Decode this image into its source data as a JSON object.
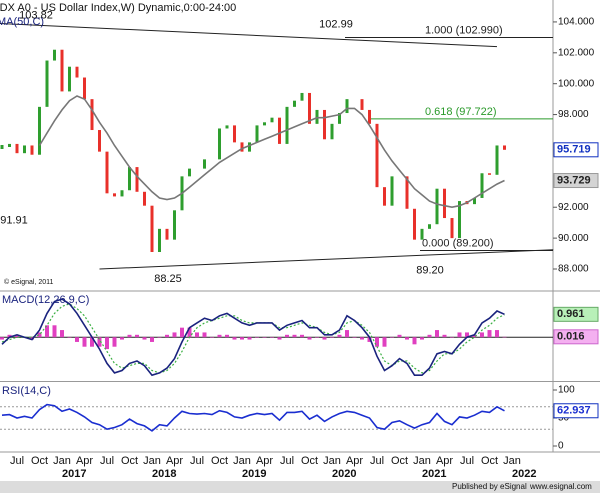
{
  "header": {
    "title": "(DX A0 - US Dollar Index,W) Dynamic,0:00-24:00",
    "watermark": "© eSignal, 2011"
  },
  "footer": {
    "left": "Published by eSignal",
    "right": "www.esignal.com"
  },
  "chart_data": [
    {
      "type": "price",
      "title": "MA(50,C)",
      "categories": [
        null,
        null,
        "Jul",
        null,
        null,
        "Oct",
        null,
        null,
        "Jan",
        null,
        null,
        "Apr",
        null,
        null,
        "Jul",
        null,
        null,
        "Oct",
        null,
        null,
        "Jan",
        null,
        null,
        "Apr",
        null,
        null,
        "Jul",
        null,
        null,
        "Oct",
        null,
        null,
        "Jan",
        null,
        null,
        "Apr",
        null,
        null,
        "Jul",
        null,
        null,
        "Oct",
        null,
        null,
        "Jan",
        null,
        null,
        "Apr",
        null,
        null,
        "Jul",
        null,
        null,
        "Oct",
        null,
        null,
        "Jan",
        null,
        null,
        "Apr",
        null,
        null,
        "Jul",
        null,
        null,
        "Oct",
        null,
        null,
        "Jan"
      ],
      "category_years": [
        null,
        null,
        null,
        null,
        null,
        null,
        null,
        null,
        "2017",
        null,
        null,
        null,
        null,
        null,
        null,
        null,
        null,
        null,
        null,
        null,
        "2018",
        null,
        null,
        null,
        null,
        null,
        null,
        null,
        null,
        null,
        null,
        null,
        "2019",
        null,
        null,
        null,
        null,
        null,
        null,
        null,
        null,
        null,
        null,
        null,
        "2020",
        null,
        null,
        null,
        null,
        null,
        null,
        null,
        null,
        null,
        null,
        null,
        "2021",
        null,
        null,
        null,
        null,
        null,
        null,
        null,
        null,
        null,
        null,
        null,
        "2022"
      ],
      "ylim": [
        86.64,
        105.42
      ],
      "yticks": [
        {
          "value": 104,
          "label": "104.000"
        },
        {
          "value": 102,
          "label": "102.000"
        },
        {
          "value": 100,
          "label": "100.000"
        },
        {
          "value": 98,
          "label": "98.000"
        },
        {
          "value": 92,
          "label": "92.000"
        },
        {
          "value": 90,
          "label": "90.000"
        },
        {
          "value": 88,
          "label": "88.000"
        }
      ],
      "up_color": "#2e9e2e",
      "down_color": "#e8302a",
      "series": [
        {
          "color": "#1030c0",
          "values": [
            95.9,
            96.1,
            95.5,
            96.0,
            95.4,
            98.5,
            101.5,
            102.2,
            99.5,
            101.1,
            100.4,
            99.0,
            97.0,
            95.6,
            92.9,
            92.7,
            93.1,
            94.6,
            93.0,
            92.1,
            89.1,
            90.6,
            89.9,
            91.8,
            94.0,
            94.5,
            94.5,
            95.1,
            95.1,
            97.1,
            97.3,
            96.2,
            95.6,
            96.2,
            97.3,
            97.5,
            97.8,
            96.1,
            98.5,
            98.9,
            99.4,
            97.4,
            98.3,
            96.4,
            97.4,
            98.1,
            99.0,
            99.0,
            98.3,
            97.4,
            93.3,
            92.1,
            94.0,
            94.0,
            91.9,
            89.9,
            90.6,
            90.9,
            93.2,
            91.3,
            90.0,
            92.4,
            92.2,
            92.6,
            94.2,
            94.1,
            96.0,
            95.719,
            null
          ]
        },
        {
          "color": "#777777",
          "values": [
            null,
            null,
            null,
            null,
            null,
            96.0,
            96.8,
            97.6,
            98.3,
            98.9,
            99.2,
            99.0,
            98.3,
            97.5,
            96.8,
            96.0,
            95.3,
            94.6,
            94.0,
            93.5,
            93.0,
            92.6,
            92.5,
            92.6,
            92.9,
            93.3,
            93.7,
            94.1,
            94.5,
            94.9,
            95.2,
            95.5,
            95.8,
            96.0,
            96.2,
            96.4,
            96.6,
            96.8,
            97.0,
            97.2,
            97.4,
            97.6,
            97.8,
            97.8,
            97.9,
            98.0,
            98.4,
            98.4,
            98.0,
            97.3,
            96.5,
            95.7,
            95.0,
            94.4,
            93.8,
            93.2,
            92.8,
            92.4,
            92.2,
            92.1,
            92.0,
            92.1,
            92.3,
            92.6,
            92.9,
            93.2,
            93.5,
            93.729,
            null
          ]
        }
      ],
      "fib_levels": [
        {
          "value": 102.99,
          "label": "1.000 (102.990)",
          "color": "#222222"
        },
        {
          "value": 97.722,
          "label": "0.618 (97.722)",
          "color": "#2a9a2a"
        },
        {
          "value": 89.2,
          "label": "0.000 (89.200)",
          "color": "#222222"
        }
      ],
      "trendlines": [
        {
          "x": [
            -0.3,
            66
          ],
          "y": [
            103.9,
            102.4
          ]
        },
        {
          "x": [
            13,
            73.5
          ],
          "y": [
            88.0,
            89.25
          ]
        }
      ],
      "annotations": [
        103.82,
        102.99,
        88.25,
        {
          "value": 89.2,
          "label": "89.20"
        },
        91.91
      ]
    },
    {
      "type": "macd",
      "title": "MACD(12,26,9,C)",
      "ylim": [
        -1.8,
        1.9
      ],
      "macd_color": "#1a237e",
      "signal_color": "#3cb043",
      "histogram_color": "#e040c0",
      "macd": [
        -0.3,
        0.0,
        0.1,
        0.0,
        -0.1,
        0.3,
        1.0,
        1.5,
        1.6,
        1.4,
        1.0,
        0.5,
        0.0,
        -0.5,
        -1.1,
        -1.5,
        -1.4,
        -1.1,
        -1.0,
        -1.2,
        -1.6,
        -1.5,
        -1.3,
        -0.9,
        -0.2,
        0.4,
        0.6,
        0.8,
        0.7,
        0.9,
        1.0,
        0.8,
        0.6,
        0.5,
        0.6,
        0.6,
        0.6,
        0.3,
        0.5,
        0.6,
        0.7,
        0.4,
        0.4,
        0.1,
        0.1,
        0.3,
        0.9,
        0.7,
        0.4,
        0.0,
        -0.8,
        -1.4,
        -1.2,
        -0.9,
        -1.1,
        -1.6,
        -1.6,
        -1.3,
        -0.7,
        -0.6,
        -0.7,
        -0.3,
        0.0,
        0.1,
        0.6,
        0.8,
        1.1,
        0.961,
        null
      ],
      "signal": [
        -0.2,
        -0.1,
        0.0,
        0.0,
        0.0,
        0.1,
        0.5,
        1.0,
        1.3,
        1.4,
        1.2,
        0.9,
        0.4,
        -0.1,
        -0.6,
        -1.1,
        -1.3,
        -1.2,
        -1.1,
        -1.1,
        -1.4,
        -1.5,
        -1.4,
        -1.1,
        -0.6,
        0.0,
        0.4,
        0.6,
        0.7,
        0.8,
        0.9,
        0.9,
        0.7,
        0.6,
        0.6,
        0.6,
        0.6,
        0.4,
        0.4,
        0.5,
        0.6,
        0.5,
        0.4,
        0.2,
        0.1,
        0.2,
        0.6,
        0.7,
        0.5,
        0.2,
        -0.4,
        -1.0,
        -1.2,
        -1.0,
        -1.0,
        -1.3,
        -1.5,
        -1.4,
        -1.0,
        -0.7,
        -0.7,
        -0.5,
        -0.2,
        0.0,
        0.3,
        0.5,
        0.8,
        0.945,
        null
      ],
      "histogram": [
        -0.1,
        0.1,
        0.1,
        0.0,
        -0.1,
        0.2,
        0.5,
        0.5,
        0.3,
        0.0,
        -0.2,
        -0.4,
        -0.4,
        -0.4,
        -0.5,
        -0.4,
        -0.1,
        0.1,
        0.1,
        -0.1,
        -0.2,
        0.0,
        0.1,
        0.2,
        0.4,
        0.4,
        0.2,
        0.2,
        0.0,
        0.1,
        0.1,
        -0.1,
        -0.1,
        -0.1,
        0.0,
        0.0,
        0.0,
        -0.1,
        0.1,
        0.1,
        0.1,
        -0.1,
        0.0,
        -0.1,
        0.0,
        0.1,
        0.3,
        0.0,
        -0.1,
        -0.2,
        -0.4,
        -0.4,
        0.0,
        0.1,
        -0.1,
        -0.3,
        -0.1,
        0.1,
        0.3,
        0.1,
        0.0,
        0.2,
        0.2,
        0.1,
        0.2,
        0.3,
        0.3,
        0.016,
        null
      ]
    },
    {
      "type": "line",
      "title": "RSI(14,C)",
      "ylim": [
        -8.9,
        112.5
      ],
      "yticks": [
        100,
        50,
        0
      ],
      "levels": [
        70,
        30
      ],
      "color": "#1a2ed0",
      "values": [
        55,
        56,
        50,
        53,
        50,
        65,
        74,
        72,
        62,
        66,
        60,
        52,
        42,
        38,
        30,
        33,
        38,
        48,
        40,
        36,
        27,
        38,
        36,
        50,
        62,
        58,
        57,
        58,
        56,
        63,
        60,
        52,
        50,
        55,
        58,
        56,
        58,
        46,
        60,
        60,
        62,
        48,
        55,
        44,
        52,
        58,
        62,
        60,
        55,
        50,
        33,
        30,
        42,
        45,
        38,
        32,
        38,
        42,
        58,
        44,
        38,
        52,
        50,
        55,
        62,
        60,
        70,
        62.937,
        null
      ]
    }
  ]
}
